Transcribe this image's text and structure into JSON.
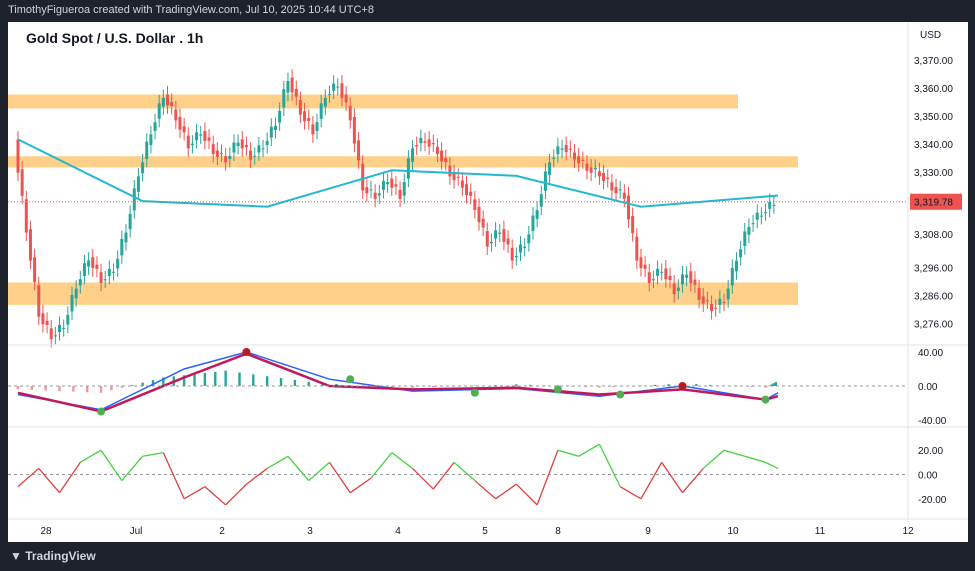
{
  "header": {
    "credit": "TimothyFigueroa created with TradingView.com, Jul 10, 2025 10:44 UTC+8"
  },
  "chart": {
    "title": "Gold Spot / U.S. Dollar . 1h",
    "currency": "USD",
    "last_price": "3,319.78"
  },
  "footer": {
    "brand": "TradingView",
    "logo_icon": "tradingview-logo-icon"
  },
  "colors": {
    "up": "#26a69a",
    "down": "#ef5350",
    "ma": "#22b8cf",
    "zone": "#ffd08a",
    "macd_fast": "#2962ff",
    "macd_slow": "#c2185b",
    "signal_green": "#4caf50",
    "signal_red": "#b71c1c",
    "rsi_up": "#43d13b",
    "rsi_down": "#e04040"
  },
  "chart_data": [
    {
      "type": "candlestick",
      "title": "Gold Spot / U.S. Dollar . 1h",
      "x_tick_labels": [
        "28",
        "Jul",
        "2",
        "3",
        "4",
        "5",
        "8",
        "9",
        "10",
        "11",
        "12"
      ],
      "y_tick_labels": [
        "3,370.00",
        "3,360.00",
        "3,350.00",
        "3,340.00",
        "3,330.00",
        "3,308.00",
        "3,296.00",
        "3,286.00",
        "3,276.00"
      ],
      "last_price": 3319.78,
      "support_resistance_zones": [
        [
          3353,
          3358
        ],
        [
          3332,
          3336
        ],
        [
          3283,
          3291
        ]
      ],
      "price_path": [
        [
          0,
          3342
        ],
        [
          3,
          3310
        ],
        [
          6,
          3280
        ],
        [
          9,
          3272
        ],
        [
          12,
          3276
        ],
        [
          15,
          3290
        ],
        [
          18,
          3300
        ],
        [
          21,
          3292
        ],
        [
          24,
          3296
        ],
        [
          27,
          3310
        ],
        [
          30,
          3330
        ],
        [
          33,
          3345
        ],
        [
          36,
          3358
        ],
        [
          39,
          3350
        ],
        [
          42,
          3340
        ],
        [
          45,
          3345
        ],
        [
          48,
          3338
        ],
        [
          51,
          3335
        ],
        [
          54,
          3342
        ],
        [
          57,
          3336
        ],
        [
          60,
          3340
        ],
        [
          63,
          3348
        ],
        [
          66,
          3364
        ],
        [
          69,
          3352
        ],
        [
          72,
          3345
        ],
        [
          75,
          3358
        ],
        [
          78,
          3362
        ],
        [
          81,
          3350
        ],
        [
          84,
          3325
        ],
        [
          87,
          3322
        ],
        [
          90,
          3328
        ],
        [
          93,
          3322
        ],
        [
          96,
          3340
        ],
        [
          99,
          3342
        ],
        [
          102,
          3338
        ],
        [
          105,
          3330
        ],
        [
          108,
          3326
        ],
        [
          111,
          3318
        ],
        [
          114,
          3305
        ],
        [
          117,
          3310
        ],
        [
          120,
          3300
        ],
        [
          123,
          3305
        ],
        [
          126,
          3318
        ],
        [
          129,
          3335
        ],
        [
          132,
          3340
        ],
        [
          135,
          3336
        ],
        [
          138,
          3332
        ],
        [
          141,
          3330
        ],
        [
          144,
          3325
        ],
        [
          147,
          3322
        ],
        [
          150,
          3300
        ],
        [
          153,
          3292
        ],
        [
          156,
          3296
        ],
        [
          159,
          3288
        ],
        [
          162,
          3295
        ],
        [
          165,
          3286
        ],
        [
          168,
          3282
        ],
        [
          171,
          3285
        ],
        [
          174,
          3300
        ],
        [
          177,
          3312
        ],
        [
          180,
          3316
        ],
        [
          183,
          3319.78
        ]
      ],
      "moving_average": [
        [
          0,
          3342
        ],
        [
          30,
          3320
        ],
        [
          60,
          3318
        ],
        [
          90,
          3331
        ],
        [
          120,
          3329
        ],
        [
          150,
          3318
        ],
        [
          183,
          3322
        ]
      ]
    },
    {
      "type": "line",
      "title": "",
      "y_tick_labels": [
        "40.00",
        "0.00",
        "-40.00"
      ],
      "ylim": [
        -40,
        40
      ],
      "series": [
        {
          "values": [
            [
              0,
              -10
            ],
            [
              20,
              -28
            ],
            [
              40,
              20
            ],
            [
              55,
              40
            ],
            [
              75,
              8
            ],
            [
              95,
              -6
            ],
            [
              120,
              -3
            ],
            [
              140,
              -12
            ],
            [
              160,
              0
            ],
            [
              180,
              -16
            ],
            [
              183,
              -8
            ]
          ]
        },
        {
          "values": [
            [
              0,
              -8
            ],
            [
              20,
              -30
            ],
            [
              40,
              10
            ],
            [
              55,
              38
            ],
            [
              75,
              0
            ],
            [
              95,
              -4
            ],
            [
              120,
              -2
            ],
            [
              140,
              -10
            ],
            [
              160,
              -4
            ],
            [
              180,
              -16
            ],
            [
              183,
              -12
            ]
          ]
        }
      ],
      "histogram": [
        [
          0,
          -4
        ],
        [
          20,
          -8
        ],
        [
          35,
          10
        ],
        [
          50,
          18
        ],
        [
          70,
          5
        ],
        [
          90,
          -3
        ],
        [
          120,
          2
        ],
        [
          140,
          -2
        ],
        [
          160,
          3
        ],
        [
          180,
          -2
        ],
        [
          183,
          6
        ]
      ],
      "crossover_markers": [
        [
          20,
          -30,
          "up"
        ],
        [
          55,
          40,
          "down"
        ],
        [
          80,
          8,
          "up"
        ],
        [
          110,
          -8,
          "up"
        ],
        [
          130,
          -4,
          "up"
        ],
        [
          145,
          -10,
          "up"
        ],
        [
          160,
          0,
          "down"
        ],
        [
          180,
          -16,
          "up"
        ]
      ]
    },
    {
      "type": "line",
      "title": "",
      "y_tick_labels": [
        "20.00",
        "0.00",
        "-20.00"
      ],
      "ylim": [
        -35,
        35
      ],
      "values": [
        [
          0,
          -10
        ],
        [
          5,
          5
        ],
        [
          10,
          -15
        ],
        [
          15,
          10
        ],
        [
          20,
          20
        ],
        [
          25,
          -5
        ],
        [
          30,
          15
        ],
        [
          35,
          18
        ],
        [
          40,
          -20
        ],
        [
          45,
          -10
        ],
        [
          50,
          -25
        ],
        [
          55,
          -8
        ],
        [
          60,
          5
        ],
        [
          65,
          15
        ],
        [
          70,
          -5
        ],
        [
          75,
          10
        ],
        [
          80,
          -15
        ],
        [
          85,
          -3
        ],
        [
          90,
          18
        ],
        [
          95,
          5
        ],
        [
          100,
          -12
        ],
        [
          105,
          10
        ],
        [
          110,
          -5
        ],
        [
          115,
          -20
        ],
        [
          120,
          -8
        ],
        [
          125,
          -25
        ],
        [
          130,
          20
        ],
        [
          135,
          15
        ],
        [
          140,
          25
        ],
        [
          145,
          -10
        ],
        [
          150,
          -20
        ],
        [
          155,
          10
        ],
        [
          160,
          -15
        ],
        [
          165,
          5
        ],
        [
          170,
          20
        ],
        [
          175,
          15
        ],
        [
          180,
          10
        ],
        [
          183,
          5
        ]
      ]
    }
  ]
}
